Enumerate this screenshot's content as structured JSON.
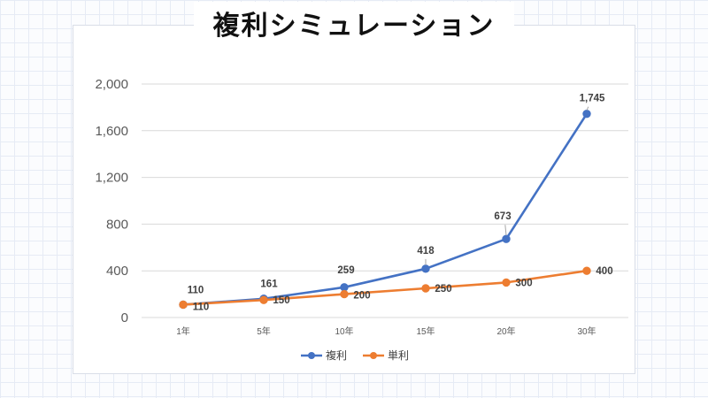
{
  "colors": {
    "compound": "#4472c4",
    "simple": "#ed7d31",
    "grid": "#d9d9d9"
  },
  "chart_data": {
    "type": "line",
    "title": "複利シミュレーション",
    "categories": [
      "1年",
      "5年",
      "10年",
      "15年",
      "20年",
      "30年"
    ],
    "ylim": [
      0,
      2000
    ],
    "yticks": [
      0,
      400,
      800,
      1200,
      1600,
      2000
    ],
    "ytick_labels": [
      "0",
      "400",
      "800",
      "1,200",
      "1,600",
      "2,000"
    ],
    "grid": true,
    "legend_position": "bottom",
    "series": [
      {
        "name": "複利",
        "values": [
          110,
          161,
          259,
          418,
          673,
          1745
        ],
        "labels": [
          "110",
          "161",
          "259",
          "418",
          "673",
          "1,745"
        ]
      },
      {
        "name": "単利",
        "values": [
          110,
          150,
          200,
          250,
          300,
          400
        ],
        "labels": [
          "110",
          "150",
          "200",
          "250",
          "300",
          "400"
        ]
      }
    ]
  }
}
